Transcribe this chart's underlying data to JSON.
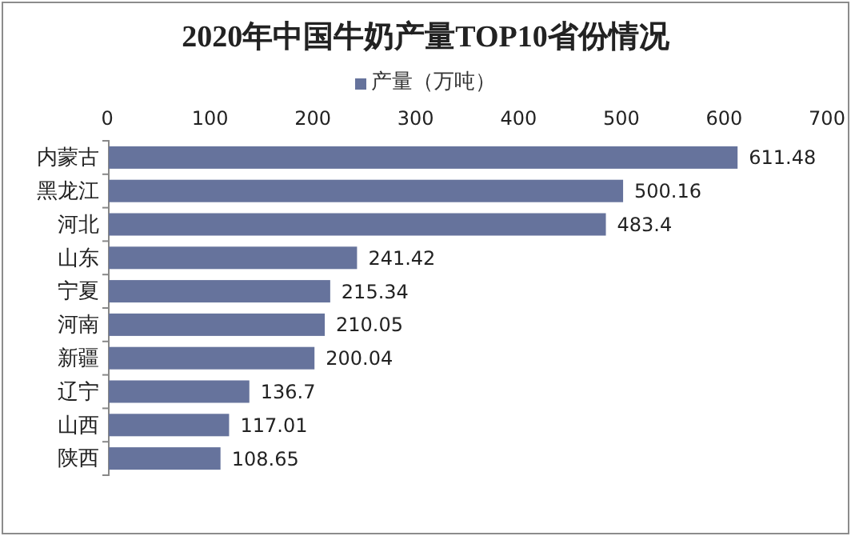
{
  "chart_data": {
    "type": "bar",
    "orientation": "horizontal",
    "title": "2020年中国牛奶产量TOP10省份情况",
    "categories": [
      "内蒙古",
      "黑龙江",
      "河北",
      "山东",
      "宁夏",
      "河南",
      "新疆",
      "辽宁",
      "山西",
      "陕西"
    ],
    "series": [
      {
        "name": "产量（万吨）",
        "color": "#66739c",
        "values": [
          611.48,
          500.16,
          483.4,
          241.42,
          215.34,
          210.05,
          200.04,
          136.7,
          117.01,
          108.65
        ]
      }
    ],
    "xlim": [
      0,
      700
    ],
    "xticks": [
      0,
      100,
      200,
      300,
      400,
      500,
      600,
      700
    ],
    "data_labels": true,
    "legend": "top"
  }
}
